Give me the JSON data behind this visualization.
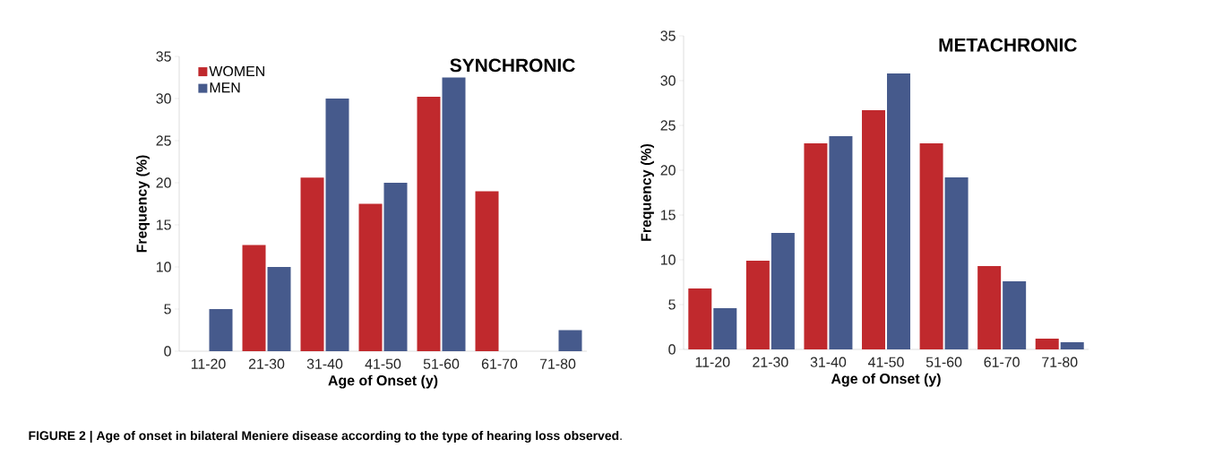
{
  "chart_data": [
    {
      "type": "bar",
      "title": "SYNCHRONIC",
      "xlabel": "Age of Onset (y)",
      "ylabel": "Frequency (%)",
      "categories": [
        "11-20",
        "21-30",
        "31-40",
        "41-50",
        "51-60",
        "61-70",
        "71-80"
      ],
      "series": [
        {
          "name": "WOMEN",
          "color": "#c0292d",
          "values": [
            0,
            12.6,
            20.6,
            17.5,
            30.2,
            19,
            0
          ]
        },
        {
          "name": "MEN",
          "color": "#465a8c",
          "values": [
            5,
            10,
            30,
            20,
            32.5,
            0,
            2.5
          ]
        }
      ],
      "ylim": [
        0,
        35
      ],
      "yticks": [
        0,
        5,
        10,
        15,
        20,
        25,
        30,
        35
      ],
      "legend": "top left",
      "annotations": [
        "**FIGURE 2 | Age of onset in bilateral Meniere disease according to the type of hearing loss observed**."
      ]
    },
    {
      "type": "bar",
      "title": "METACHRONIC",
      "xlabel": "Age of Onset (y)",
      "ylabel": "Frequency (%)",
      "categories": [
        "11-20",
        "21-30",
        "31-40",
        "41-50",
        "51-60",
        "61-70",
        "71-80"
      ],
      "series": [
        {
          "color": "#c0292d",
          "values": [
            6.8,
            9.9,
            23,
            26.7,
            23,
            9.3,
            1.2
          ]
        },
        {
          "color": "#465a8c",
          "values": [
            4.6,
            13.0,
            23.8,
            30.8,
            19.2,
            7.6,
            0.8
          ]
        }
      ],
      "ylim": [
        0,
        35
      ],
      "yticks": [
        0,
        5,
        10,
        15,
        20,
        25,
        30,
        35
      ]
    }
  ]
}
